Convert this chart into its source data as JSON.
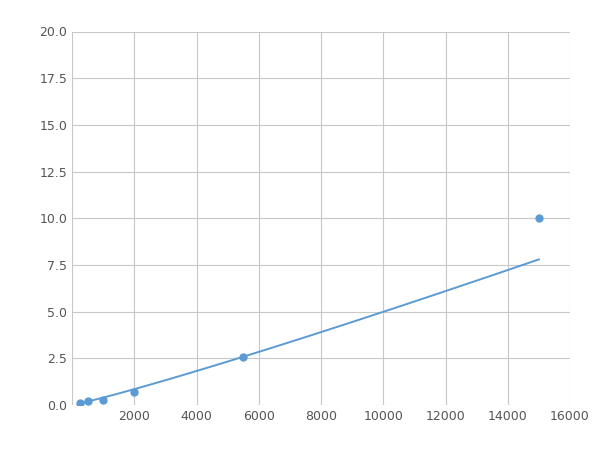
{
  "x_points": [
    250,
    500,
    1000,
    2000,
    5500,
    15000
  ],
  "y_points": [
    0.12,
    0.2,
    0.25,
    0.7,
    2.55,
    10.0
  ],
  "line_color": "#5b9bd5",
  "marker_color": "#5b9bd5",
  "marker_size": 5,
  "line_width": 1.4,
  "xlim": [
    0,
    16000
  ],
  "ylim": [
    0,
    20.0
  ],
  "xticks": [
    0,
    2000,
    4000,
    6000,
    8000,
    10000,
    12000,
    14000,
    16000
  ],
  "yticks": [
    0.0,
    2.5,
    5.0,
    7.5,
    10.0,
    12.5,
    15.0,
    17.5,
    20.0
  ],
  "grid_color": "#c8c8c8",
  "bg_color": "#ffffff",
  "fig_bg_color": "#ffffff"
}
